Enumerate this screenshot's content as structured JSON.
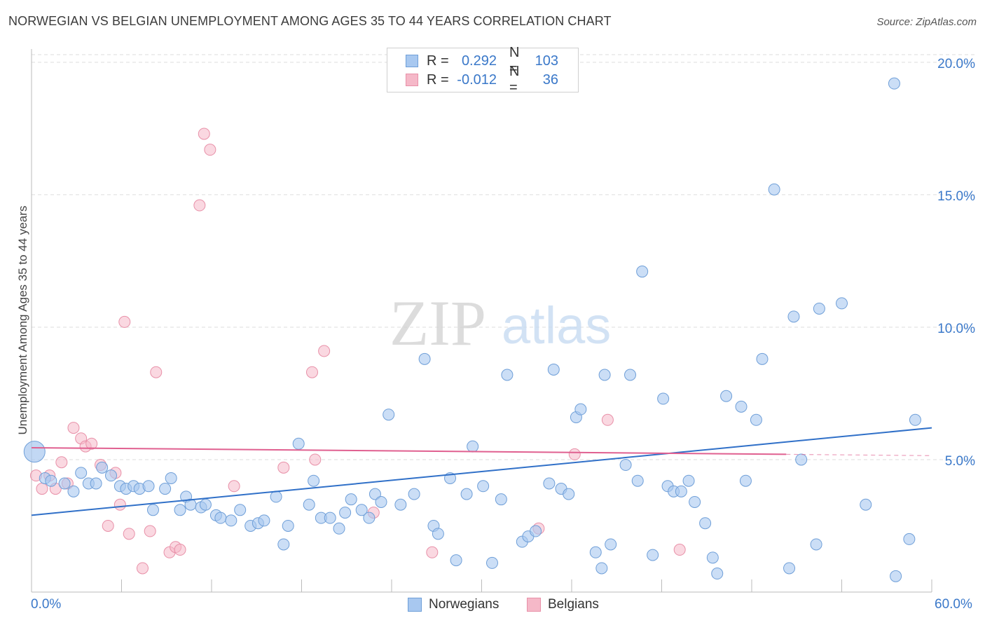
{
  "header": {
    "title": "NORWEGIAN VS BELGIAN UNEMPLOYMENT AMONG AGES 35 TO 44 YEARS CORRELATION CHART",
    "source": "Source: ZipAtlas.com"
  },
  "watermark": {
    "zip": "ZIP",
    "atlas": "atlas"
  },
  "legend": {
    "rows": [
      {
        "r_label": "R =",
        "r_value": "0.292",
        "n_label": "N =",
        "n_value": "103",
        "color": "#a8c8f0"
      },
      {
        "r_label": "R =",
        "r_value": "-0.012",
        "n_label": "N =",
        "n_value": "36",
        "color": "#f5b8c8"
      }
    ]
  },
  "bottom_legend": {
    "norwegians": "Norwegians",
    "belgians": "Belgians"
  },
  "x_tick_labels": {
    "left": "0.0%",
    "right": "60.0%"
  },
  "colors": {
    "blue_fill": "#a8c8f0",
    "blue_stroke": "#6f9fd8",
    "blue_line": "#3070c8",
    "pink_fill": "#f5b8c8",
    "pink_stroke": "#e890a8",
    "pink_line": "#e06090",
    "grid": "#dddddd",
    "axis_text": "#3a78c9"
  },
  "chart_data": {
    "type": "scatter",
    "title": "NORWEGIAN VS BELGIAN UNEMPLOYMENT AMONG AGES 35 TO 44 YEARS CORRELATION CHART",
    "xlabel": "",
    "ylabel": "Unemployment Among Ages 35 to 44 years",
    "xlim": [
      0,
      60
    ],
    "ylim": [
      0,
      20.5
    ],
    "y_ticks": [
      5,
      10,
      15,
      20
    ],
    "y_tick_labels": [
      "5.0%",
      "10.0%",
      "15.0%",
      "20.0%"
    ],
    "grid": true,
    "series": [
      {
        "name": "Norwegians",
        "color": "#a8c8f0",
        "trend": {
          "x0": 0,
          "y0": 2.9,
          "x1": 60,
          "y1": 6.2
        },
        "points": [
          [
            0.2,
            5.3
          ],
          [
            0.9,
            4.3
          ],
          [
            1.3,
            4.2
          ],
          [
            2.2,
            4.1
          ],
          [
            2.8,
            3.8
          ],
          [
            3.3,
            4.5
          ],
          [
            3.8,
            4.1
          ],
          [
            4.3,
            4.1
          ],
          [
            4.7,
            4.7
          ],
          [
            5.3,
            4.4
          ],
          [
            5.9,
            4.0
          ],
          [
            6.3,
            3.9
          ],
          [
            6.8,
            4.0
          ],
          [
            7.2,
            3.9
          ],
          [
            7.8,
            4.0
          ],
          [
            8.1,
            3.1
          ],
          [
            8.9,
            3.9
          ],
          [
            9.3,
            4.3
          ],
          [
            9.9,
            3.1
          ],
          [
            10.3,
            3.6
          ],
          [
            10.6,
            3.3
          ],
          [
            11.3,
            3.2
          ],
          [
            11.6,
            3.3
          ],
          [
            12.3,
            2.9
          ],
          [
            12.6,
            2.8
          ],
          [
            13.3,
            2.7
          ],
          [
            13.9,
            3.1
          ],
          [
            14.6,
            2.5
          ],
          [
            15.1,
            2.6
          ],
          [
            15.5,
            2.7
          ],
          [
            16.3,
            3.6
          ],
          [
            16.8,
            1.8
          ],
          [
            17.1,
            2.5
          ],
          [
            17.8,
            5.6
          ],
          [
            18.5,
            3.3
          ],
          [
            18.8,
            4.2
          ],
          [
            19.3,
            2.8
          ],
          [
            19.9,
            2.8
          ],
          [
            20.5,
            2.4
          ],
          [
            20.9,
            3.0
          ],
          [
            21.3,
            3.5
          ],
          [
            22.0,
            3.1
          ],
          [
            22.5,
            2.8
          ],
          [
            22.9,
            3.7
          ],
          [
            23.3,
            3.4
          ],
          [
            23.8,
            6.7
          ],
          [
            24.6,
            3.3
          ],
          [
            25.5,
            3.7
          ],
          [
            26.2,
            8.8
          ],
          [
            26.8,
            2.5
          ],
          [
            27.1,
            2.2
          ],
          [
            27.9,
            4.3
          ],
          [
            28.3,
            1.2
          ],
          [
            29.0,
            3.7
          ],
          [
            29.4,
            5.5
          ],
          [
            30.1,
            4.0
          ],
          [
            30.7,
            1.1
          ],
          [
            31.3,
            3.5
          ],
          [
            31.7,
            8.2
          ],
          [
            32.7,
            1.9
          ],
          [
            33.1,
            2.1
          ],
          [
            33.6,
            2.3
          ],
          [
            34.5,
            4.1
          ],
          [
            34.8,
            8.4
          ],
          [
            35.3,
            3.9
          ],
          [
            35.8,
            3.7
          ],
          [
            36.3,
            6.6
          ],
          [
            36.6,
            6.9
          ],
          [
            37.6,
            1.5
          ],
          [
            38.0,
            0.9
          ],
          [
            38.2,
            8.2
          ],
          [
            38.6,
            1.8
          ],
          [
            39.6,
            4.8
          ],
          [
            39.9,
            8.2
          ],
          [
            40.4,
            4.2
          ],
          [
            40.7,
            12.1
          ],
          [
            41.4,
            1.4
          ],
          [
            42.1,
            7.3
          ],
          [
            42.4,
            4.0
          ],
          [
            42.8,
            3.8
          ],
          [
            43.3,
            3.8
          ],
          [
            43.8,
            4.2
          ],
          [
            44.2,
            3.4
          ],
          [
            44.9,
            2.6
          ],
          [
            45.4,
            1.3
          ],
          [
            45.7,
            0.7
          ],
          [
            46.3,
            7.4
          ],
          [
            47.3,
            7.0
          ],
          [
            47.6,
            4.2
          ],
          [
            48.3,
            6.5
          ],
          [
            48.7,
            8.8
          ],
          [
            49.5,
            15.2
          ],
          [
            50.5,
            0.9
          ],
          [
            50.8,
            10.4
          ],
          [
            51.3,
            5.0
          ],
          [
            52.3,
            1.8
          ],
          [
            52.5,
            10.7
          ],
          [
            54.0,
            10.9
          ],
          [
            55.6,
            3.3
          ],
          [
            57.5,
            19.2
          ],
          [
            57.6,
            0.6
          ],
          [
            58.5,
            2.0
          ],
          [
            58.9,
            6.5
          ]
        ]
      },
      {
        "name": "Belgians",
        "color": "#f5b8c8",
        "trend": {
          "x0": 0,
          "y0": 5.45,
          "x1": 50.3,
          "y1": 5.2,
          "dash_x1": 60,
          "dash_y1": 5.15
        },
        "points": [
          [
            0.3,
            4.4
          ],
          [
            0.7,
            3.9
          ],
          [
            1.2,
            4.4
          ],
          [
            1.6,
            3.9
          ],
          [
            2.0,
            4.9
          ],
          [
            2.4,
            4.1
          ],
          [
            2.8,
            6.2
          ],
          [
            3.3,
            5.8
          ],
          [
            3.6,
            5.5
          ],
          [
            4.0,
            5.6
          ],
          [
            4.6,
            4.8
          ],
          [
            5.1,
            2.5
          ],
          [
            5.6,
            4.5
          ],
          [
            5.9,
            3.3
          ],
          [
            6.2,
            10.2
          ],
          [
            6.5,
            2.2
          ],
          [
            7.4,
            0.9
          ],
          [
            7.9,
            2.3
          ],
          [
            8.3,
            8.3
          ],
          [
            9.2,
            1.5
          ],
          [
            9.6,
            1.7
          ],
          [
            9.9,
            1.6
          ],
          [
            11.2,
            14.6
          ],
          [
            11.5,
            17.3
          ],
          [
            11.9,
            16.7
          ],
          [
            13.5,
            4.0
          ],
          [
            16.8,
            4.7
          ],
          [
            18.7,
            8.3
          ],
          [
            18.9,
            5.0
          ],
          [
            19.5,
            9.1
          ],
          [
            22.8,
            3.0
          ],
          [
            26.7,
            1.5
          ],
          [
            33.8,
            2.4
          ],
          [
            36.2,
            5.2
          ],
          [
            38.4,
            6.5
          ],
          [
            43.2,
            1.6
          ]
        ]
      }
    ]
  }
}
